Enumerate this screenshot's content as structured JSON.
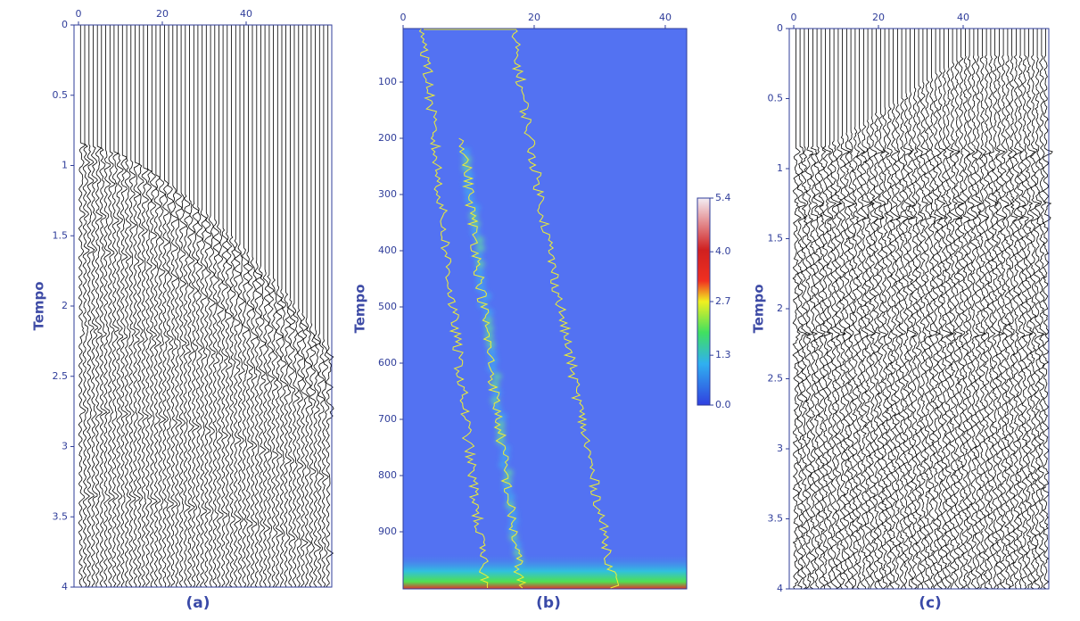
{
  "chart_data": [
    {
      "type": "wiggle",
      "ylabel": "Tempo",
      "caption": "(a)",
      "xlim": [
        0,
        60
      ],
      "xticks": [
        0,
        20,
        40
      ],
      "ylim": [
        0,
        4
      ],
      "yticks": [
        0,
        0.5,
        1,
        1.5,
        2,
        2.5,
        3,
        3.5,
        4
      ]
    },
    {
      "type": "heatmap",
      "ylabel": "Tempo",
      "caption": "(b)",
      "xlim": [
        0,
        43
      ],
      "xticks": [
        0,
        20,
        40
      ],
      "ylim": [
        0,
        1000
      ],
      "yticks": [
        100,
        200,
        300,
        400,
        500,
        600,
        700,
        800,
        900
      ],
      "colorbar": {
        "lim": [
          0,
          5.4
        ],
        "ticks": [
          {
            "value": 0,
            "label": "0.0"
          },
          1.3,
          2.7,
          {
            "value": 4,
            "label": "4.0"
          },
          5.4
        ]
      }
    },
    {
      "type": "wiggle",
      "ylabel": "Tempo",
      "caption": "(c)",
      "xlim": [
        0,
        60
      ],
      "xticks": [
        0,
        20,
        40
      ],
      "ylim": [
        0,
        4
      ],
      "yticks": [
        0,
        0.5,
        1,
        1.5,
        2,
        2.5,
        3,
        3.5,
        4
      ]
    }
  ]
}
